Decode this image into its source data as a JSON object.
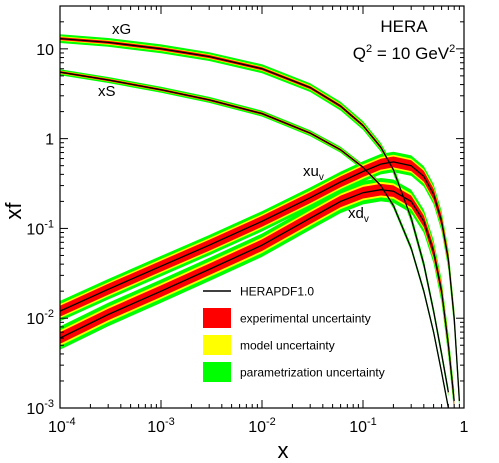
{
  "chart_data": {
    "type": "line",
    "xlabel": "x",
    "ylabel": "xf",
    "x_scale": "log",
    "y_scale": "log",
    "xlim": [
      0.0001,
      1
    ],
    "ylim": [
      0.001,
      30
    ],
    "x_ticks": [
      {
        "base": "10",
        "exp": "-4"
      },
      {
        "base": "10",
        "exp": "-3"
      },
      {
        "base": "10",
        "exp": "-2"
      },
      {
        "base": "10",
        "exp": "-1"
      },
      {
        "base": "1",
        "exp": ""
      }
    ],
    "y_ticks": [
      {
        "value": 10,
        "base": "10",
        "exp": ""
      },
      {
        "value": 1,
        "base": "1",
        "exp": ""
      },
      {
        "value": 0.1,
        "base": "10",
        "exp": "-1"
      },
      {
        "value": 0.01,
        "base": "10",
        "exp": "-2"
      },
      {
        "value": 0.001,
        "base": "10",
        "exp": "-3"
      }
    ],
    "annotation": {
      "line1": "HERA",
      "line2_prefix": "Q",
      "line2_sup1": "2",
      "line2_mid": " = 10 GeV",
      "line2_sup2": "2"
    },
    "legend": {
      "position": "bottom-center",
      "entries": [
        {
          "label": "HERAPDF1.0",
          "kind": "line",
          "color": "#000000"
        },
        {
          "label": "experimental uncertainty",
          "kind": "box",
          "color": "#ff0000"
        },
        {
          "label": "model uncertainty",
          "kind": "box",
          "color": "#ffff00"
        },
        {
          "label": "parametrization uncertainty",
          "kind": "box",
          "color": "#00ff00"
        }
      ]
    },
    "colors": {
      "central": "#000000",
      "experimental": "#ff0000",
      "model": "#ffff00",
      "parametrization": "#00ff00"
    },
    "series": [
      {
        "name": "xG",
        "label_base": "xG",
        "label_sub": "",
        "x": [
          0.0001,
          0.0003,
          0.001,
          0.003,
          0.01,
          0.03,
          0.06,
          0.1,
          0.15,
          0.2,
          0.3,
          0.4,
          0.5,
          0.6,
          0.7
        ],
        "y": [
          13.0,
          11.8,
          10.0,
          8.2,
          6.0,
          3.7,
          2.3,
          1.4,
          0.8,
          0.45,
          0.13,
          0.04,
          0.012,
          0.004,
          0.0015
        ],
        "band_factor": {
          "param": 1.12,
          "model": 1.06,
          "exp": 1.04
        }
      },
      {
        "name": "xS",
        "label_base": "xS",
        "label_sub": "",
        "x": [
          0.0001,
          0.0003,
          0.001,
          0.003,
          0.01,
          0.03,
          0.06,
          0.1,
          0.15,
          0.2,
          0.3,
          0.4,
          0.5,
          0.6,
          0.7
        ],
        "y": [
          5.5,
          4.5,
          3.5,
          2.7,
          1.9,
          1.15,
          0.75,
          0.48,
          0.3,
          0.18,
          0.06,
          0.02,
          0.007,
          0.0025,
          0.001
        ],
        "band_factor": {
          "param": 1.08,
          "model": 1.04,
          "exp": 1.03
        }
      },
      {
        "name": "xuv",
        "label_base": "xu",
        "label_sub": "v",
        "x": [
          0.0001,
          0.0003,
          0.001,
          0.003,
          0.01,
          0.03,
          0.06,
          0.1,
          0.15,
          0.2,
          0.3,
          0.4,
          0.5,
          0.6,
          0.7,
          0.8,
          0.9
        ],
        "y": [
          0.012,
          0.021,
          0.038,
          0.065,
          0.12,
          0.22,
          0.33,
          0.43,
          0.52,
          0.55,
          0.5,
          0.38,
          0.24,
          0.12,
          0.045,
          0.01,
          0.0012
        ],
        "band_factor": {
          "param": 1.3,
          "model": 1.2,
          "exp": 1.15
        }
      },
      {
        "name": "xdv",
        "label_base": "xd",
        "label_sub": "v",
        "x": [
          0.0001,
          0.0003,
          0.001,
          0.003,
          0.01,
          0.03,
          0.06,
          0.1,
          0.15,
          0.2,
          0.3,
          0.4,
          0.5,
          0.6,
          0.7,
          0.8
        ],
        "y": [
          0.006,
          0.011,
          0.02,
          0.035,
          0.065,
          0.13,
          0.2,
          0.25,
          0.27,
          0.26,
          0.2,
          0.12,
          0.055,
          0.02,
          0.005,
          0.0012
        ],
        "band_factor": {
          "param": 1.35,
          "model": 1.22,
          "exp": 1.16
        }
      }
    ]
  }
}
